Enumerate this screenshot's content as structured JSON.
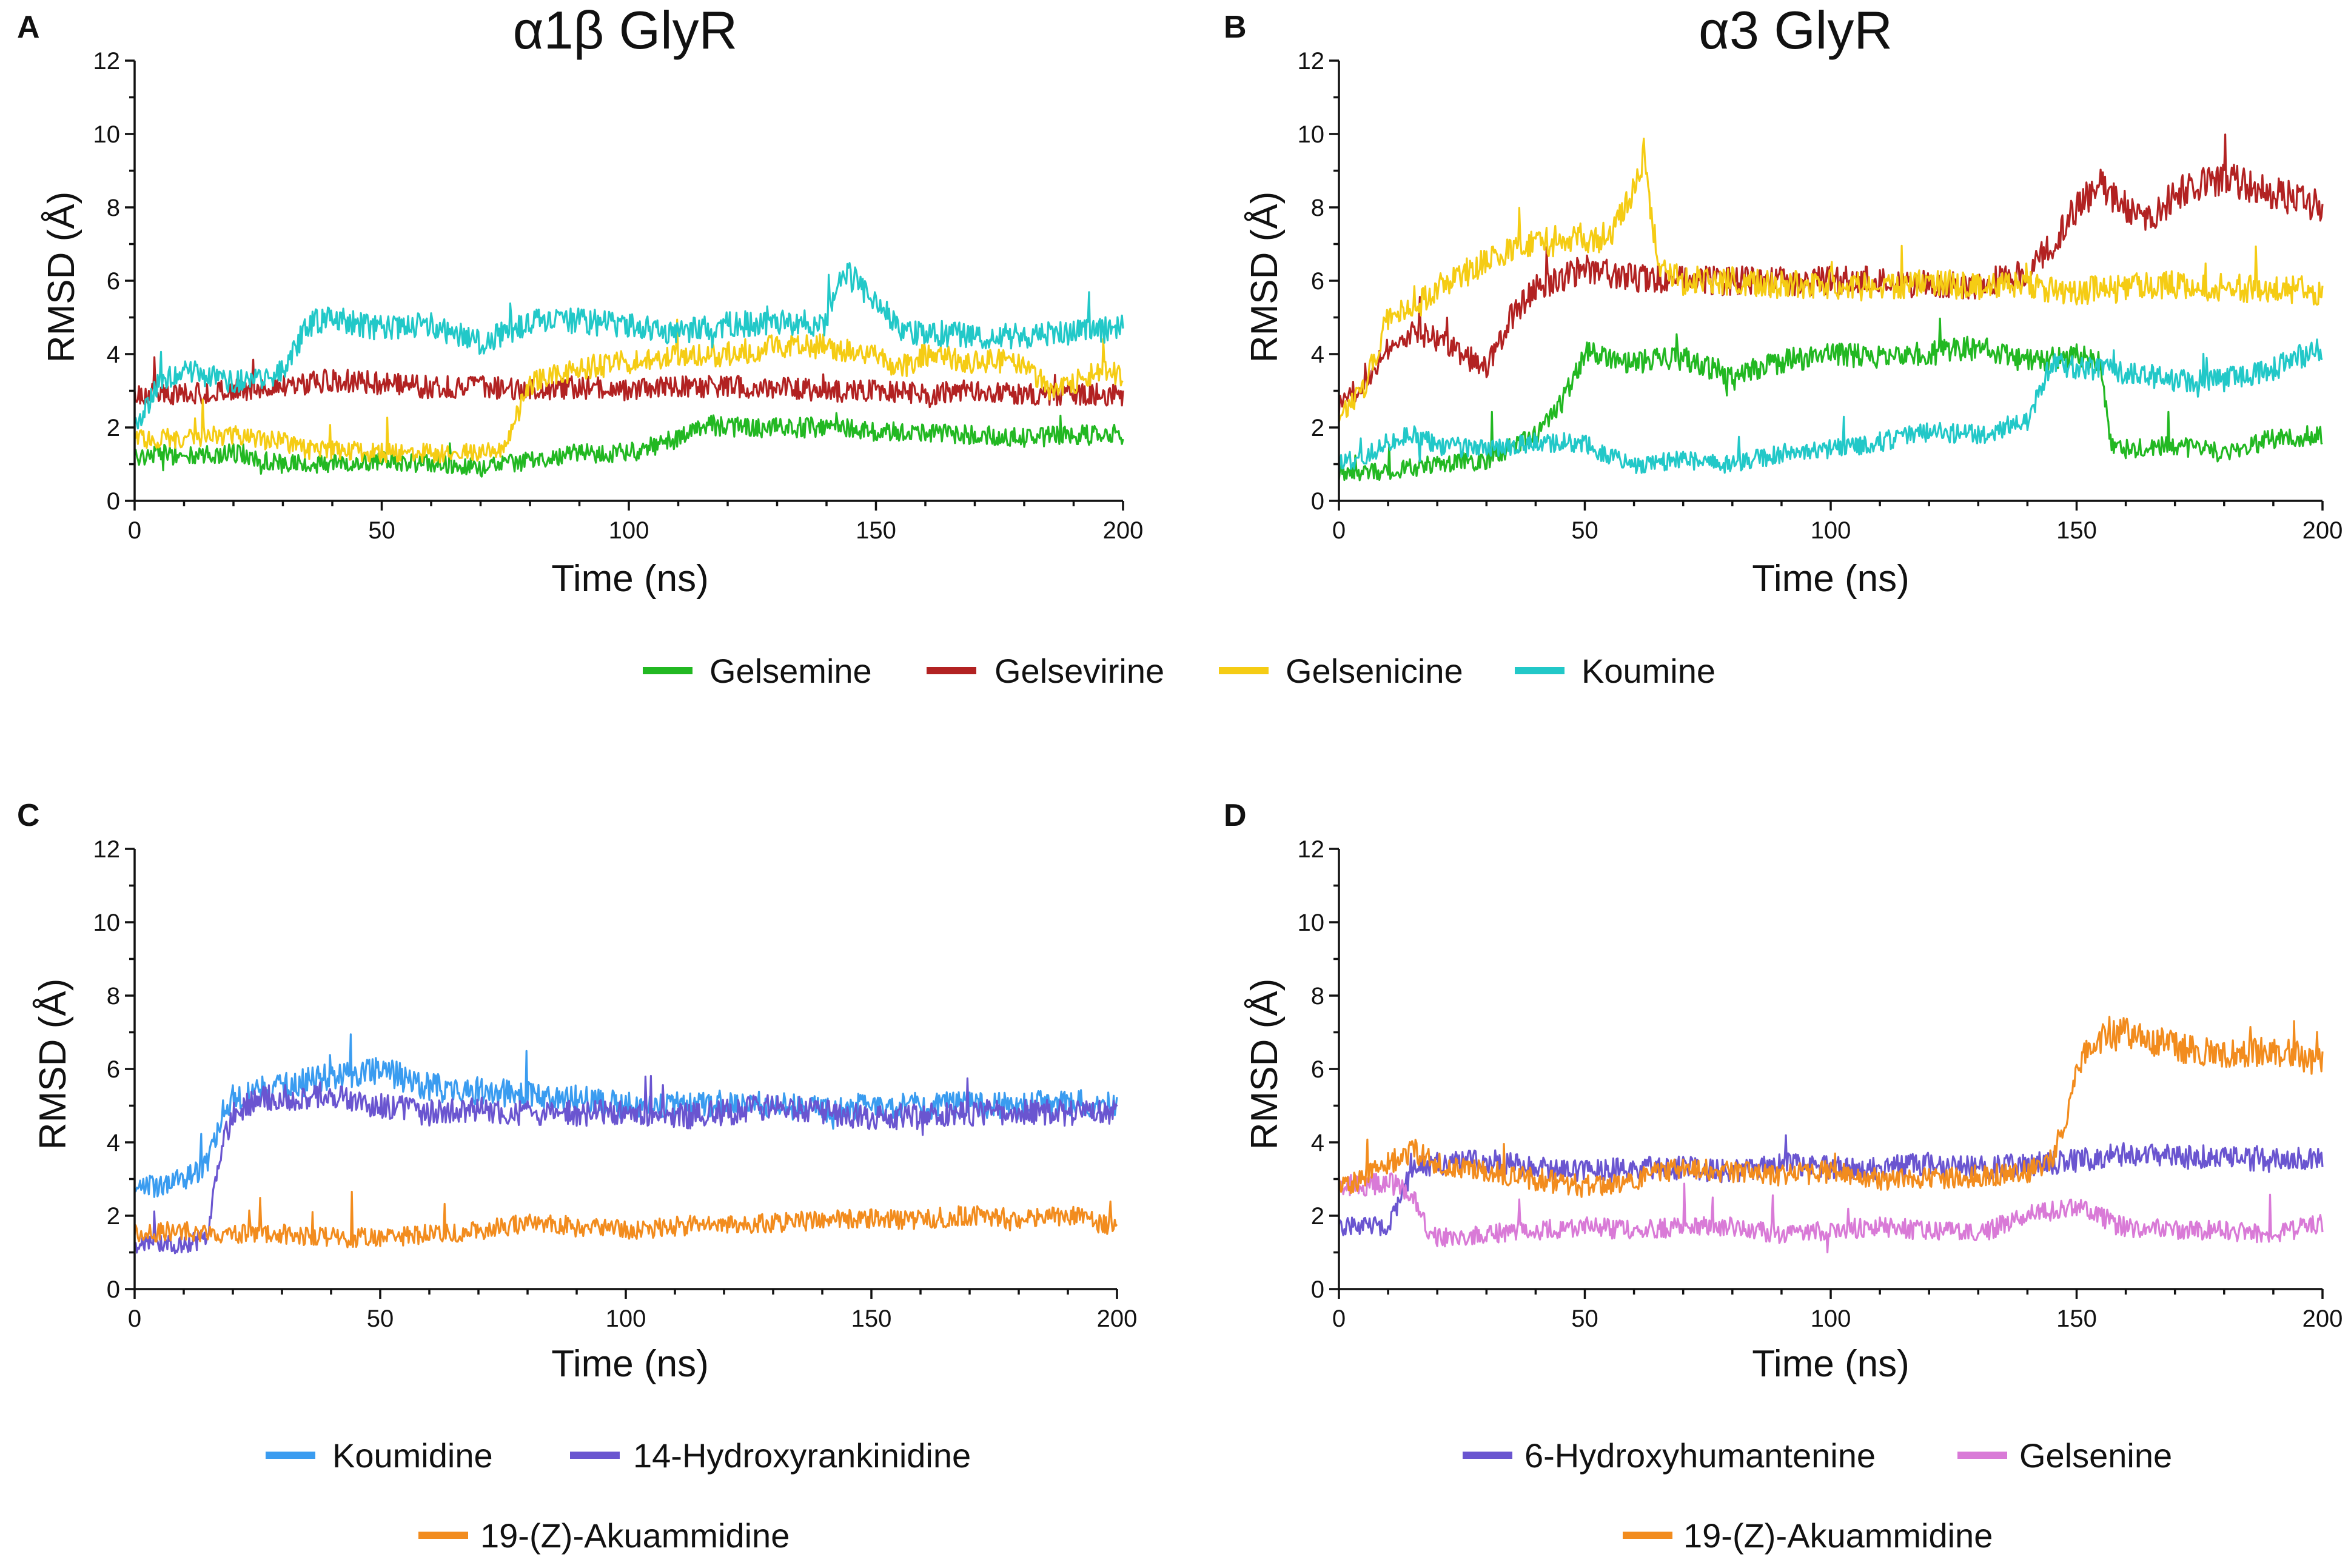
{
  "colors": {
    "gelsemine": "#22b822",
    "gelsevirine": "#b22222",
    "gelsenicine": "#f5cc14",
    "koumine": "#22c8c8",
    "koumidine": "#3a9cf0",
    "hydroxyrankinidine": "#6a55d0",
    "akuammidine": "#f28c1e",
    "hydroxyhumantenine": "#6a55d0",
    "gelsenine": "#d97ad7"
  },
  "chart_data": [
    {
      "type": "line",
      "panel": "A",
      "title": "α1β GlyR",
      "xlabel": "Time (ns)",
      "ylabel": "RMSD (Å)",
      "xlim": [
        0,
        200
      ],
      "ylim": [
        0,
        12
      ],
      "xticks": [
        "0",
        "50",
        "100",
        "150",
        "200"
      ],
      "yticks": [
        "0",
        "2",
        "4",
        "6",
        "8",
        "10",
        "12"
      ],
      "series": [
        {
          "name": "Gelsemine",
          "color": "gelsemine",
          "x": [
            0,
            5,
            10,
            20,
            30,
            40,
            50,
            60,
            70,
            80,
            90,
            100,
            105,
            110,
            115,
            120,
            130,
            140,
            150,
            160,
            170,
            180,
            190,
            200
          ],
          "y": [
            1.2,
            1.3,
            1.2,
            1.3,
            1.0,
            1.0,
            1.1,
            1.0,
            0.9,
            1.1,
            1.3,
            1.3,
            1.5,
            1.7,
            2.1,
            2.0,
            2.0,
            2.0,
            1.9,
            1.9,
            1.8,
            1.7,
            1.8,
            1.8
          ]
        },
        {
          "name": "Gelsevirine",
          "color": "gelsevirine",
          "x": [
            0,
            10,
            20,
            30,
            40,
            50,
            60,
            70,
            80,
            90,
            100,
            110,
            120,
            130,
            140,
            150,
            160,
            170,
            180,
            190,
            200
          ],
          "y": [
            2.9,
            2.9,
            3.0,
            3.1,
            3.3,
            3.2,
            3.1,
            3.1,
            3.0,
            3.1,
            3.0,
            3.1,
            3.1,
            3.1,
            3.0,
            3.0,
            2.9,
            3.0,
            2.9,
            2.9,
            2.9
          ]
        },
        {
          "name": "Gelsenicine",
          "color": "gelsenicine",
          "x": [
            0,
            10,
            20,
            30,
            35,
            40,
            50,
            60,
            70,
            75,
            80,
            85,
            90,
            100,
            110,
            120,
            130,
            140,
            150,
            155,
            160,
            170,
            180,
            185,
            190,
            195,
            200
          ],
          "y": [
            1.7,
            1.7,
            1.8,
            1.6,
            1.4,
            1.4,
            1.3,
            1.3,
            1.3,
            1.5,
            3.2,
            3.4,
            3.6,
            3.8,
            4.0,
            4.0,
            4.2,
            4.2,
            4.0,
            3.6,
            4.0,
            3.8,
            3.8,
            3.0,
            3.2,
            3.6,
            3.4
          ]
        },
        {
          "name": "Koumine",
          "color": "koumine",
          "x": [
            0,
            5,
            10,
            20,
            30,
            35,
            40,
            50,
            60,
            70,
            80,
            90,
            100,
            110,
            120,
            130,
            140,
            142,
            145,
            150,
            155,
            160,
            170,
            180,
            190,
            200
          ],
          "y": [
            2.0,
            3.2,
            3.6,
            3.2,
            3.5,
            4.8,
            5.0,
            4.7,
            4.8,
            4.3,
            4.9,
            4.9,
            4.8,
            4.6,
            4.8,
            4.9,
            4.8,
            6.0,
            6.1,
            5.5,
            4.6,
            4.6,
            4.5,
            4.5,
            4.6,
            4.7
          ]
        }
      ]
    },
    {
      "type": "line",
      "panel": "B",
      "title": "α3 GlyR",
      "xlabel": "Time (ns)",
      "ylabel": "RMSD (Å)",
      "xlim": [
        0,
        200
      ],
      "ylim": [
        0,
        12
      ],
      "xticks": [
        "0",
        "50",
        "100",
        "150",
        "200"
      ],
      "yticks": [
        "0",
        "2",
        "4",
        "6",
        "8",
        "10",
        "12"
      ],
      "series": [
        {
          "name": "Gelsemine",
          "color": "gelsemine",
          "x": [
            0,
            10,
            20,
            30,
            40,
            45,
            50,
            60,
            70,
            80,
            90,
            100,
            110,
            120,
            130,
            140,
            150,
            155,
            157,
            160,
            170,
            180,
            190,
            200
          ],
          "y": [
            0.8,
            0.8,
            1.0,
            1.1,
            1.8,
            2.6,
            4.0,
            3.8,
            3.9,
            3.4,
            3.8,
            4.0,
            3.9,
            4.0,
            4.2,
            3.8,
            4.0,
            3.7,
            1.5,
            1.4,
            1.5,
            1.3,
            1.7,
            1.8
          ]
        },
        {
          "name": "Gelsevirine",
          "color": "gelsevirine",
          "x": [
            0,
            5,
            10,
            15,
            20,
            25,
            30,
            35,
            40,
            50,
            60,
            70,
            80,
            90,
            100,
            110,
            120,
            130,
            140,
            145,
            150,
            155,
            160,
            165,
            170,
            180,
            190,
            200
          ],
          "y": [
            2.6,
            3.2,
            4.2,
            4.6,
            4.4,
            4.0,
            3.6,
            5.0,
            5.8,
            6.3,
            6.1,
            6.0,
            6.0,
            6.0,
            6.0,
            6.0,
            5.9,
            5.9,
            6.2,
            7.0,
            8.0,
            8.6,
            8.0,
            7.6,
            8.4,
            8.8,
            8.4,
            8.0
          ]
        },
        {
          "name": "Gelsenicine",
          "color": "gelsenicine",
          "x": [
            0,
            5,
            10,
            15,
            20,
            30,
            40,
            50,
            55,
            60,
            62,
            65,
            70,
            80,
            90,
            100,
            110,
            120,
            130,
            140,
            150,
            160,
            170,
            180,
            190,
            200
          ],
          "y": [
            2.4,
            3.0,
            5.0,
            5.2,
            5.8,
            6.5,
            7.0,
            7.2,
            7.2,
            8.5,
            9.5,
            6.3,
            6.0,
            6.0,
            5.9,
            5.9,
            5.8,
            6.0,
            5.8,
            5.9,
            5.7,
            5.8,
            5.9,
            5.8,
            5.8,
            5.7
          ]
        },
        {
          "name": "Koumine",
          "color": "koumine",
          "x": [
            0,
            5,
            10,
            15,
            20,
            30,
            40,
            50,
            55,
            60,
            70,
            80,
            90,
            100,
            110,
            120,
            130,
            140,
            145,
            150,
            160,
            170,
            180,
            190,
            200
          ],
          "y": [
            1.0,
            1.2,
            1.6,
            1.8,
            1.5,
            1.4,
            1.6,
            1.6,
            1.2,
            1.0,
            1.1,
            1.0,
            1.3,
            1.4,
            1.6,
            1.9,
            1.8,
            2.2,
            3.8,
            3.6,
            3.5,
            3.3,
            3.3,
            3.6,
            4.2
          ]
        }
      ]
    },
    {
      "type": "line",
      "panel": "C",
      "title": "",
      "xlabel": "Time (ns)",
      "ylabel": "RMSD (Å)",
      "xlim": [
        0,
        200
      ],
      "ylim": [
        0,
        12
      ],
      "xticks": [
        "0",
        "50",
        "100",
        "150",
        "200"
      ],
      "yticks": [
        "0",
        "2",
        "4",
        "6",
        "8",
        "10",
        "12"
      ],
      "series": [
        {
          "name": "Koumidine",
          "color": "koumidine",
          "x": [
            0,
            5,
            10,
            15,
            18,
            20,
            25,
            30,
            40,
            50,
            60,
            70,
            80,
            90,
            100,
            110,
            120,
            130,
            140,
            150,
            160,
            170,
            180,
            190,
            200
          ],
          "y": [
            2.8,
            2.8,
            3.0,
            3.4,
            4.8,
            5.2,
            5.4,
            5.5,
            5.8,
            6.0,
            5.5,
            5.4,
            5.3,
            5.2,
            5.0,
            5.0,
            5.1,
            5.0,
            4.9,
            5.0,
            5.0,
            5.0,
            5.0,
            5.1,
            5.0
          ]
        },
        {
          "name": "14-Hydroxyrankinidine",
          "color": "hydroxyrankinidine",
          "x": [
            0,
            5,
            10,
            15,
            17,
            20,
            25,
            30,
            40,
            50,
            60,
            70,
            80,
            90,
            100,
            110,
            120,
            130,
            140,
            150,
            160,
            170,
            180,
            190,
            200
          ],
          "y": [
            1.2,
            1.2,
            1.2,
            1.4,
            3.5,
            4.8,
            5.2,
            5.2,
            5.3,
            5.0,
            4.8,
            4.9,
            4.8,
            4.8,
            4.8,
            4.7,
            4.8,
            5.0,
            4.8,
            4.7,
            4.7,
            4.8,
            4.8,
            4.8,
            4.8
          ]
        },
        {
          "name": "19-(Z)-Akuammidine",
          "color": "akuammidine",
          "x": [
            0,
            10,
            20,
            30,
            40,
            50,
            60,
            70,
            80,
            90,
            100,
            110,
            120,
            130,
            140,
            150,
            160,
            170,
            180,
            190,
            200
          ],
          "y": [
            1.5,
            1.6,
            1.5,
            1.5,
            1.4,
            1.4,
            1.5,
            1.6,
            1.8,
            1.7,
            1.6,
            1.7,
            1.8,
            1.8,
            1.9,
            1.9,
            1.9,
            2.0,
            1.9,
            2.0,
            1.7
          ]
        }
      ]
    },
    {
      "type": "line",
      "panel": "D",
      "title": "",
      "xlabel": "Time (ns)",
      "ylabel": "RMSD (Å)",
      "xlim": [
        0,
        200
      ],
      "ylim": [
        0,
        12
      ],
      "xticks": [
        "0",
        "50",
        "100",
        "150",
        "200"
      ],
      "yticks": [
        "0",
        "2",
        "4",
        "6",
        "8",
        "10",
        "12"
      ],
      "series": [
        {
          "name": "6-Hydroxyhumantenine",
          "color": "hydroxyhumantenine",
          "x": [
            0,
            5,
            10,
            15,
            20,
            30,
            40,
            50,
            60,
            70,
            80,
            90,
            100,
            110,
            120,
            130,
            140,
            150,
            160,
            170,
            180,
            190,
            200
          ],
          "y": [
            1.6,
            1.8,
            1.6,
            3.3,
            3.4,
            3.5,
            3.3,
            3.2,
            3.3,
            3.3,
            3.2,
            3.4,
            3.3,
            3.3,
            3.4,
            3.3,
            3.4,
            3.5,
            3.7,
            3.6,
            3.6,
            3.5,
            3.6
          ]
        },
        {
          "name": "Gelsenine",
          "color": "gelsenine",
          "x": [
            0,
            5,
            10,
            15,
            18,
            20,
            30,
            40,
            50,
            60,
            70,
            80,
            90,
            100,
            110,
            120,
            130,
            140,
            150,
            160,
            170,
            180,
            190,
            200
          ],
          "y": [
            2.9,
            2.8,
            2.9,
            2.6,
            1.6,
            1.4,
            1.5,
            1.6,
            1.7,
            1.6,
            1.7,
            1.7,
            1.5,
            1.6,
            1.7,
            1.6,
            1.5,
            2.0,
            2.2,
            1.7,
            1.6,
            1.6,
            1.5,
            1.8
          ]
        },
        {
          "name": "19-(Z)-Akuammidine",
          "color": "akuammidine",
          "x": [
            0,
            5,
            10,
            15,
            20,
            30,
            40,
            50,
            60,
            70,
            80,
            90,
            100,
            110,
            120,
            130,
            140,
            145,
            148,
            150,
            152,
            155,
            160,
            170,
            180,
            190,
            200
          ],
          "y": [
            2.8,
            3.0,
            3.4,
            3.8,
            3.4,
            3.2,
            3.0,
            2.8,
            3.0,
            3.3,
            3.2,
            3.1,
            3.2,
            3.0,
            3.0,
            3.1,
            3.2,
            3.5,
            4.8,
            5.8,
            6.5,
            6.8,
            7.0,
            6.6,
            6.4,
            6.5,
            6.2
          ]
        }
      ]
    }
  ],
  "legend_top": {
    "items": [
      "Gelsemine",
      "Gelsevirine",
      "Gelsenicine",
      "Koumine"
    ],
    "colors": [
      "gelsemine",
      "gelsevirine",
      "gelsenicine",
      "koumine"
    ]
  },
  "legend_c": {
    "items": [
      "Koumidine",
      "14-Hydroxyrankinidine",
      "19-(Z)-Akuammidine"
    ],
    "colors": [
      "koumidine",
      "hydroxyrankinidine",
      "akuammidine"
    ]
  },
  "legend_d": {
    "items": [
      "6-Hydroxyhumantenine",
      "Gelsenine",
      "19-(Z)-Akuammidine"
    ],
    "colors": [
      "hydroxyhumantenine",
      "gelsenine",
      "akuammidine"
    ]
  }
}
